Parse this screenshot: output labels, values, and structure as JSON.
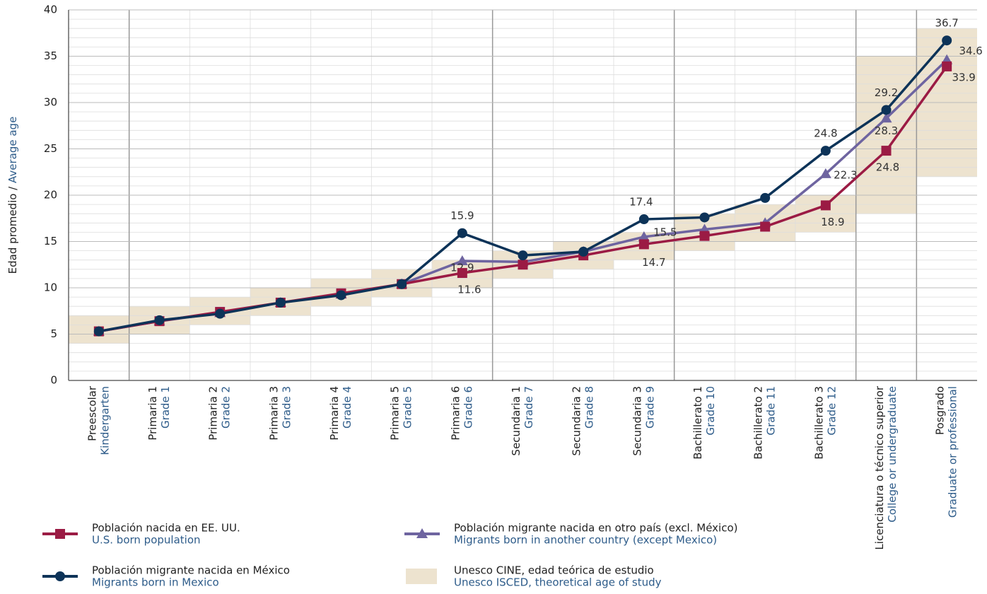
{
  "chart_data": {
    "type": "line",
    "ylabel": "Edad promedio /",
    "ylabel_en": "Average age",
    "categories": [
      "Preescolar",
      "Primaria 1",
      "Primaria 2",
      "Primaria 3",
      "Primaria 4",
      "Primaria 5",
      "Primaria 6",
      "Secundaria 1",
      "Secundaria 2",
      "Secundaria 3",
      "Bachillerato 1",
      "Bachillerato 2",
      "Bachillerato 3",
      "Licenciatura o técnico superior",
      "Posgrado"
    ],
    "categories_en": [
      "Kindergarten",
      "Grade 1",
      "Grade 2",
      "Grade 3",
      "Grade 4",
      "Grade 5",
      "Grade 6",
      "Grade 7",
      "Grade 8",
      "Grade 9",
      "Grade 10",
      "Grade 11",
      "Grade 12",
      "College or undergraduate",
      "Graduate or professional"
    ],
    "ylim": [
      0,
      40
    ],
    "yticks": [
      0,
      5,
      10,
      15,
      20,
      25,
      30,
      35,
      40
    ],
    "grid": true,
    "bands": {
      "name": "Unesco CINE, edad teórica de estudio",
      "subname": "Unesco ISCED, theoretical age of study",
      "color": "#ede3cf",
      "low": [
        4,
        5,
        6,
        7,
        8,
        9,
        10,
        11,
        12,
        13,
        14,
        15,
        16,
        18,
        22
      ],
      "high": [
        7,
        8,
        9,
        10,
        11,
        12,
        13,
        14,
        15,
        16,
        18,
        19,
        20,
        35,
        38
      ]
    },
    "series": [
      {
        "name": "Población migrante nacida en otro país (excl. México)",
        "subname": "Migrants born in another country (except Mexico)",
        "color": "#6e64a0",
        "marker": "triangle",
        "values": [
          5.3,
          6.4,
          7.3,
          8.4,
          9.3,
          10.4,
          12.9,
          12.8,
          13.9,
          15.5,
          16.3,
          17.0,
          22.3,
          28.3,
          34.6
        ],
        "value_labels": [
          null,
          null,
          null,
          null,
          null,
          null,
          "12.9",
          null,
          null,
          "15.5",
          null,
          null,
          "22.3",
          "28.3",
          "34.6"
        ]
      },
      {
        "name": "Población nacida en EE. UU.",
        "subname": "U.S. born population",
        "color": "#9b1b44",
        "marker": "square",
        "values": [
          5.3,
          6.4,
          7.4,
          8.4,
          9.4,
          10.4,
          11.6,
          12.5,
          13.5,
          14.7,
          15.6,
          16.6,
          18.9,
          24.8,
          33.9
        ],
        "value_labels": [
          null,
          null,
          null,
          null,
          null,
          null,
          "11.6",
          null,
          null,
          "14.7",
          null,
          null,
          "18.9",
          "24.8",
          "33.9"
        ]
      },
      {
        "name": "Población migrante nacida en México",
        "subname": "Migrants born in Mexico",
        "color": "#0d3358",
        "marker": "circle",
        "values": [
          5.3,
          6.5,
          7.2,
          8.4,
          9.2,
          10.4,
          15.9,
          13.5,
          13.9,
          17.4,
          17.6,
          19.7,
          24.8,
          29.2,
          36.7
        ],
        "value_labels": [
          null,
          null,
          null,
          null,
          null,
          null,
          "15.9",
          null,
          null,
          "17.4",
          null,
          null,
          "24.8",
          "29.2",
          "36.7"
        ]
      }
    ]
  }
}
